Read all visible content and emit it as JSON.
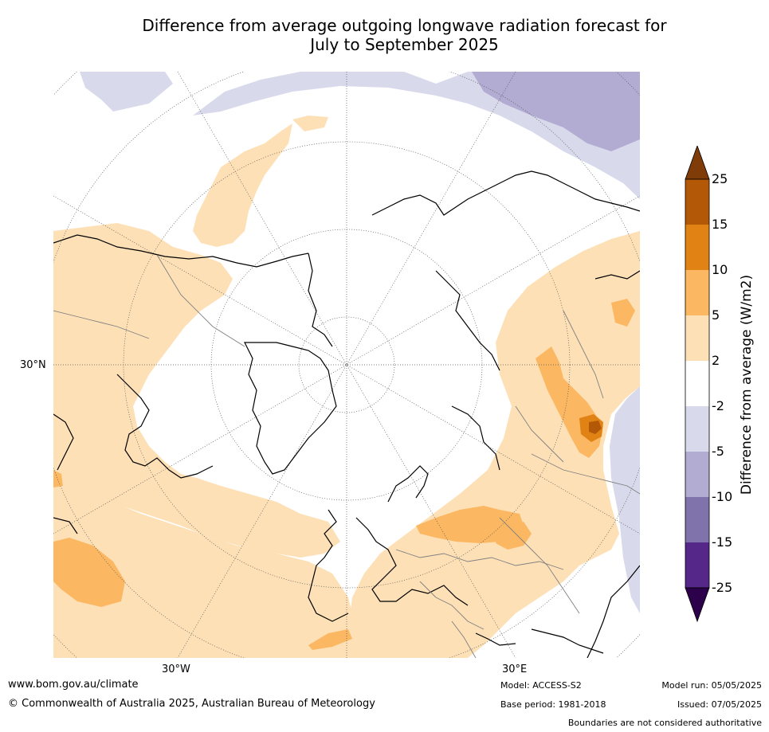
{
  "title_line1": "Difference from average outgoing longwave radiation forecast for",
  "title_line2": "July to September 2025",
  "map": {
    "projection": "north-polar-stereographic",
    "graticule": "dotted",
    "lat_label": "30°N",
    "lon_labels": [
      "30°W",
      "30°E"
    ],
    "colors": {
      "plus_2_5": "#fde0b6",
      "plus_5_10": "#fbb761",
      "plus_10_15": "#e08214",
      "plus_15_25": "#b35806",
      "over_25": "#7f3b08",
      "minus_2_5": "#d8daeb",
      "minus_5_10": "#b2abd2",
      "minus_10_15": "#8073ac",
      "minus_15_25": "#542788",
      "under_minus_25": "#2d004b",
      "neutral": "#ffffff",
      "coastline": "#000000",
      "boundary": "#808080"
    }
  },
  "legend": {
    "title": "Difference from average (W/m2)",
    "levels": [
      "25",
      "15",
      "10",
      "5",
      "2",
      "-2",
      "-5",
      "-10",
      "-15",
      "-25"
    ],
    "colors": [
      "#b35806",
      "#e08214",
      "#fbb761",
      "#fde0b6",
      "#ffffff",
      "#d8daeb",
      "#b2abd2",
      "#8073ac",
      "#542788"
    ],
    "extend_top_color": "#7f3b08",
    "extend_bottom_color": "#2d004b"
  },
  "footer": {
    "website": "www.bom.gov.au/climate",
    "copyright": "© Commonwealth of Australia 2025, Australian Bureau of Meteorology",
    "model": "Model: ACCESS-S2",
    "base_period": "Base period: 1981-2018",
    "model_run": "Model run: 05/05/2025",
    "issued": "Issued: 07/05/2025",
    "disclaimer": "Boundaries are not considered authoritative"
  }
}
